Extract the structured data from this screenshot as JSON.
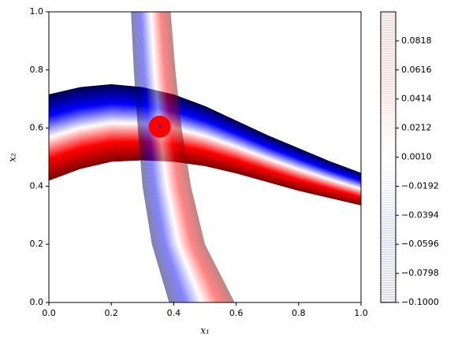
{
  "chart_data": {
    "type": "contour",
    "xlabel": "x₁",
    "ylabel": "x₂",
    "xlim": [
      0,
      1
    ],
    "ylim": [
      0,
      1
    ],
    "xticks": [
      {
        "value": 0,
        "label": "0.0"
      },
      0.2,
      0.4,
      0.6,
      0.8,
      {
        "value": 1,
        "label": "1.0"
      }
    ],
    "yticks": [
      {
        "value": 0,
        "label": "0.0"
      },
      0.2,
      0.4,
      0.6,
      0.8,
      {
        "value": 1,
        "label": "1.0"
      }
    ],
    "colormap": "seismic",
    "bands": [
      {
        "x": [
          0,
          0.1,
          0.2,
          0.3,
          0.4,
          0.5,
          0.6,
          0.7,
          0.8,
          0.9,
          1.0
        ],
        "upper": [
          0.715,
          0.74,
          0.75,
          0.74,
          0.715,
          0.675,
          0.625,
          0.575,
          0.53,
          0.485,
          0.445
        ],
        "lower": [
          0.42,
          0.46,
          0.485,
          0.49,
          0.485,
          0.47,
          0.445,
          0.415,
          0.385,
          0.36,
          0.335
        ],
        "alpha": 1
      },
      {
        "y": [
          0,
          0.2,
          0.4,
          0.6,
          0.8,
          1.0
        ],
        "left": [
          0.385,
          0.33,
          0.3,
          0.285,
          0.272,
          0.263
        ],
        "right": [
          0.595,
          0.5,
          0.455,
          0.425,
          0.405,
          0.39
        ],
        "alpha": 0.5
      }
    ],
    "markers": [
      {
        "x": 0.355,
        "y": 0.605,
        "color": "#ff0000",
        "size": 14
      },
      {
        "x": 0.355,
        "y": 0.605,
        "color": "#0000ff",
        "size": 1.5
      }
    ],
    "colorbar": {
      "lim": [
        -0.1,
        0.102
      ],
      "ticks": [
        {
          "value": -0.1,
          "label": "−0.1000"
        },
        {
          "value": -0.0798,
          "label": "−0.0798"
        },
        {
          "value": -0.0596,
          "label": "−0.0596"
        },
        {
          "value": -0.0394,
          "label": "−0.0394"
        },
        {
          "value": -0.0192,
          "label": "−0.0192"
        },
        {
          "value": 0.001,
          "label": "0.0010"
        },
        {
          "value": 0.0212,
          "label": "0.0212"
        },
        {
          "value": 0.0414,
          "label": "0.0414"
        },
        {
          "value": 0.0616,
          "label": "0.0616"
        },
        {
          "value": 0.0818,
          "label": "0.0818"
        }
      ]
    }
  }
}
